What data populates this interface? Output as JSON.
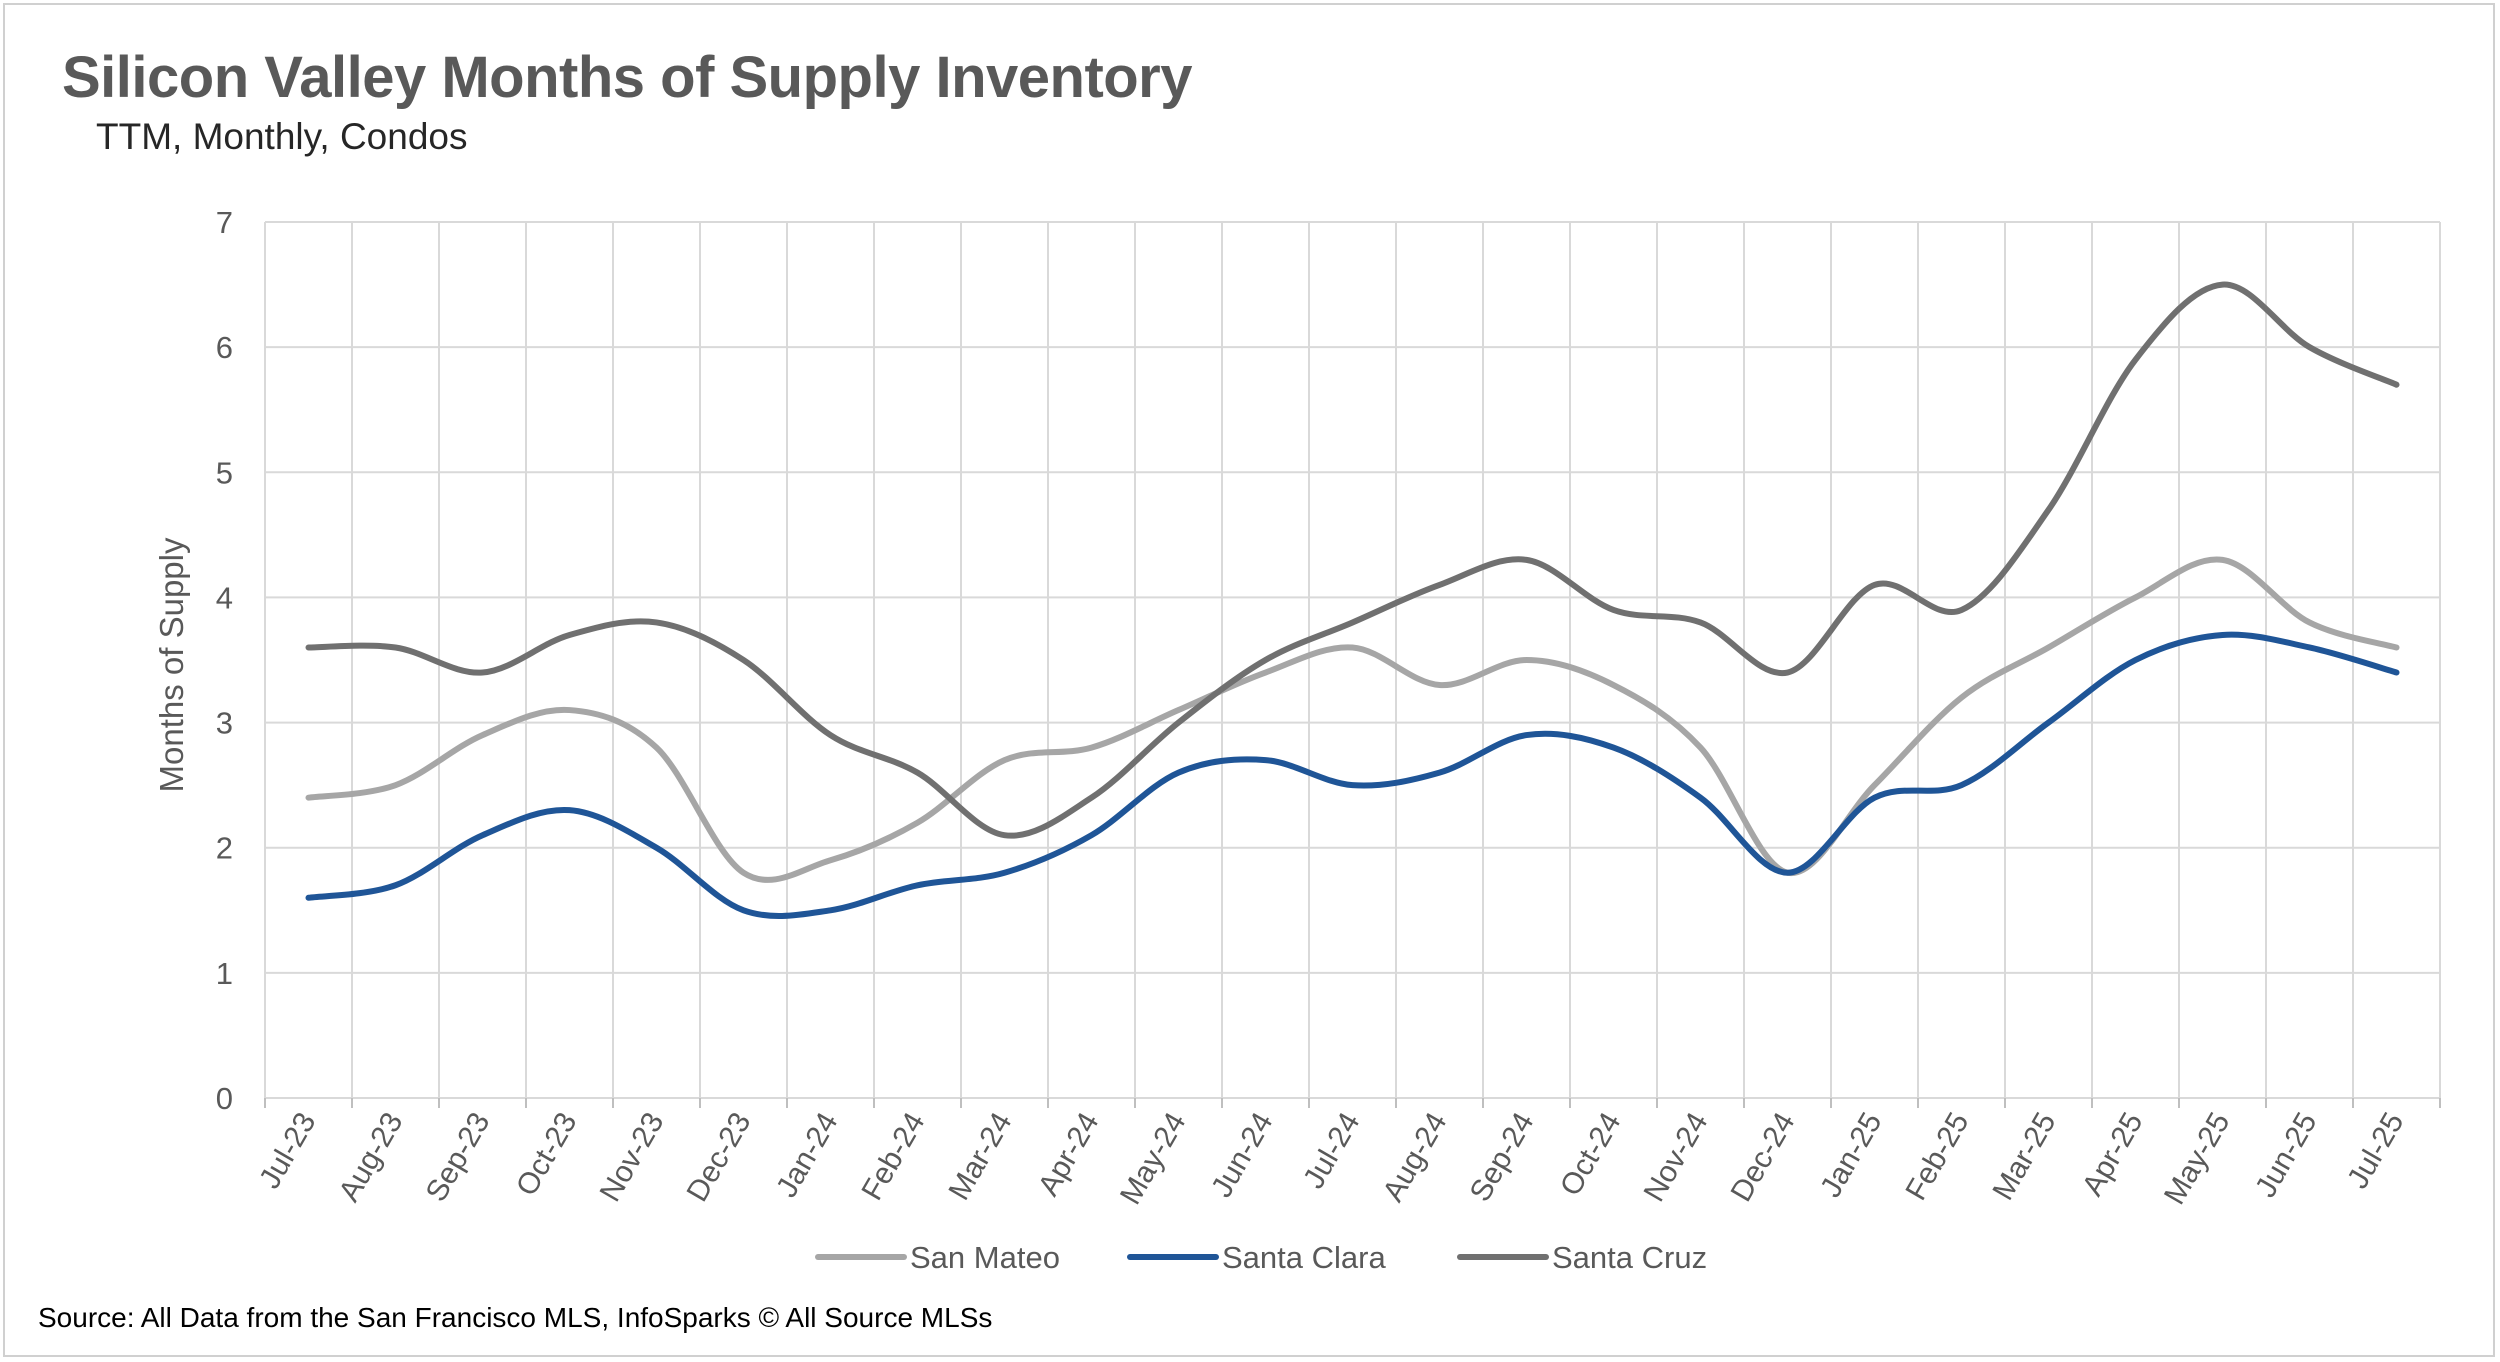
{
  "header": {
    "title": "Silicon Valley Months of Supply Inventory",
    "subtitle": "TTM, Monthly, Condos"
  },
  "footer": {
    "source": "Source: All Data from the San Francisco MLS, InfoSparks © All Source MLSs"
  },
  "chart_data": {
    "type": "line",
    "title": "Silicon Valley Months of Supply Inventory",
    "subtitle": "TTM, Monthly, Condos",
    "xlabel": "",
    "ylabel": "Months of Supply",
    "ylim": [
      0,
      7
    ],
    "yticks": [
      "0",
      "1",
      "2",
      "3",
      "4",
      "5",
      "6",
      "7"
    ],
    "grid": true,
    "legend_position": "bottom",
    "categories": [
      "Jul-23",
      "Aug-23",
      "Sep-23",
      "Oct-23",
      "Nov-23",
      "Dec-23",
      "Jan-24",
      "Feb-24",
      "Mar-24",
      "Apr-24",
      "May-24",
      "Jun-24",
      "Jul-24",
      "Aug-24",
      "Sep-24",
      "Oct-24",
      "Nov-24",
      "Dec-24",
      "Jan-25",
      "Feb-25",
      "Mar-25",
      "Apr-25",
      "May-25",
      "Jun-25",
      "Jul-25"
    ],
    "series": [
      {
        "name": "San Mateo",
        "color": "#a6a6a6",
        "values": [
          2.4,
          2.5,
          2.9,
          3.1,
          2.8,
          1.8,
          1.9,
          2.2,
          2.7,
          2.8,
          3.1,
          3.4,
          3.6,
          3.3,
          3.5,
          3.3,
          2.8,
          1.8,
          2.5,
          3.2,
          3.6,
          4.0,
          4.3,
          3.8,
          3.6
        ]
      },
      {
        "name": "Santa Clara",
        "color": "#1f5597",
        "values": [
          1.6,
          1.7,
          2.1,
          2.3,
          2.0,
          1.5,
          1.5,
          1.7,
          1.8,
          2.1,
          2.6,
          2.7,
          2.5,
          2.6,
          2.9,
          2.8,
          2.4,
          1.8,
          2.4,
          2.5,
          3.0,
          3.5,
          3.7,
          3.6,
          3.4
        ]
      },
      {
        "name": "Santa Cruz",
        "color": "#707070",
        "values": [
          3.6,
          3.6,
          3.4,
          3.7,
          3.8,
          3.5,
          2.9,
          2.6,
          2.1,
          2.4,
          3.0,
          3.5,
          3.8,
          4.1,
          4.3,
          3.9,
          3.8,
          3.4,
          4.1,
          3.9,
          4.7,
          5.9,
          6.5,
          6.0,
          5.7
        ]
      }
    ]
  }
}
